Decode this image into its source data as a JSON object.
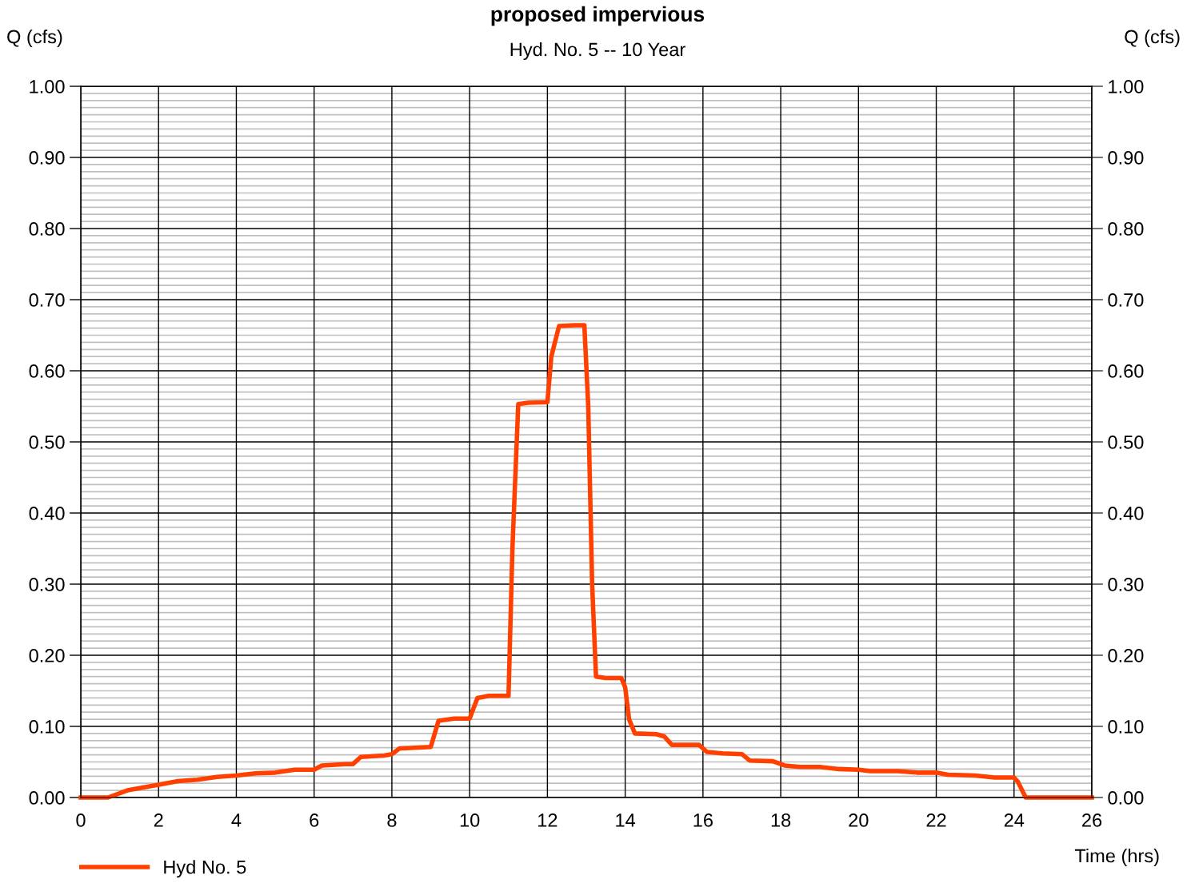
{
  "chart_data": {
    "type": "line",
    "title": "proposed impervious",
    "subtitle": "Hyd. No. 5 -- 10 Year",
    "xlabel": "Time (hrs)",
    "ylabel": "Q (cfs)",
    "y2label": "Q (cfs)",
    "series": [
      {
        "name": "Hyd No. 5",
        "color": "#ff4000",
        "x": [
          0,
          0.7,
          1.2,
          2,
          2.5,
          3,
          3.5,
          4,
          4.5,
          5,
          5.5,
          6,
          6.2,
          6.8,
          7.0,
          7.2,
          7.8,
          8.0,
          8.2,
          9.0,
          9.2,
          9.6,
          10.0,
          10.2,
          10.5,
          11.0,
          11.1,
          11.25,
          11.5,
          12.0,
          12.1,
          12.3,
          12.7,
          12.95,
          13.05,
          13.15,
          13.25,
          13.5,
          13.9,
          14.0,
          14.1,
          14.25,
          14.8,
          15.0,
          15.2,
          15.9,
          16.1,
          16.5,
          17.0,
          17.2,
          17.8,
          18.1,
          18.5,
          19,
          19.5,
          20,
          20.3,
          21,
          21.5,
          22,
          22.3,
          23,
          23.5,
          24,
          24.1,
          24.3,
          26
        ],
        "values": [
          0,
          0,
          0.01,
          0.018,
          0.023,
          0.025,
          0.029,
          0.031,
          0.034,
          0.035,
          0.039,
          0.039,
          0.045,
          0.047,
          0.047,
          0.057,
          0.059,
          0.061,
          0.069,
          0.071,
          0.108,
          0.111,
          0.111,
          0.14,
          0.143,
          0.143,
          0.35,
          0.553,
          0.555,
          0.556,
          0.62,
          0.663,
          0.664,
          0.664,
          0.55,
          0.3,
          0.17,
          0.168,
          0.168,
          0.155,
          0.11,
          0.09,
          0.089,
          0.086,
          0.074,
          0.074,
          0.064,
          0.062,
          0.061,
          0.052,
          0.051,
          0.045,
          0.043,
          0.043,
          0.04,
          0.039,
          0.037,
          0.037,
          0.035,
          0.035,
          0.032,
          0.031,
          0.028,
          0.028,
          0.022,
          0,
          0
        ]
      }
    ],
    "xlim": [
      0,
      26
    ],
    "xticks": [
      0,
      2,
      4,
      6,
      8,
      10,
      12,
      14,
      16,
      18,
      20,
      22,
      24,
      26
    ],
    "ylim": [
      0,
      1.0
    ],
    "yticks": [
      {
        "value": 0.01,
        "label": null
      },
      {
        "value": 0.02,
        "label": null
      },
      {
        "value": 0.03,
        "label": null
      },
      {
        "value": 0.04,
        "label": null
      },
      {
        "value": 0.05,
        "label": null
      },
      {
        "value": 0.06,
        "label": null
      },
      {
        "value": 0.07,
        "label": null
      },
      {
        "value": 0.08,
        "label": null
      },
      {
        "value": 0.09,
        "label": null
      },
      {
        "value": 0.11,
        "label": null
      },
      {
        "value": 0.12,
        "label": null
      },
      {
        "value": 0.13,
        "label": null
      },
      {
        "value": 0.14,
        "label": null
      },
      {
        "value": 0.15,
        "label": null
      },
      {
        "value": 0.16,
        "label": null
      },
      {
        "value": 0.17,
        "label": null
      },
      {
        "value": 0.18,
        "label": null
      },
      {
        "value": 0.19,
        "label": null
      },
      {
        "value": 0.21,
        "label": null
      },
      {
        "value": 0.22,
        "label": null
      },
      {
        "value": 0.23,
        "label": null
      },
      {
        "value": 0.24,
        "label": null
      },
      {
        "value": 0.25,
        "label": null
      },
      {
        "value": 0.26,
        "label": null
      },
      {
        "value": 0.27,
        "label": null
      },
      {
        "value": 0.28,
        "label": null
      },
      {
        "value": 0.29,
        "label": null
      },
      {
        "value": 0.31,
        "label": null
      },
      {
        "value": 0.32,
        "label": null
      },
      {
        "value": 0.33,
        "label": null
      },
      {
        "value": 0.34,
        "label": null
      },
      {
        "value": 0.35,
        "label": null
      },
      {
        "value": 0.36,
        "label": null
      },
      {
        "value": 0.37,
        "label": null
      },
      {
        "value": 0.38,
        "label": null
      },
      {
        "value": 0.39,
        "label": null
      },
      {
        "value": 0.41,
        "label": null
      },
      {
        "value": 0.42,
        "label": null
      },
      {
        "value": 0.43,
        "label": null
      },
      {
        "value": 0.44,
        "label": null
      },
      {
        "value": 0.45,
        "label": null
      },
      {
        "value": 0.46,
        "label": null
      },
      {
        "value": 0.47,
        "label": null
      },
      {
        "value": 0.48,
        "label": null
      },
      {
        "value": 0.49,
        "label": null
      },
      {
        "value": 0.51,
        "label": null
      },
      {
        "value": 0.52,
        "label": null
      },
      {
        "value": 0.53,
        "label": null
      },
      {
        "value": 0.54,
        "label": null
      },
      {
        "value": 0.55,
        "label": null
      },
      {
        "value": 0.56,
        "label": null
      },
      {
        "value": 0.57,
        "label": null
      },
      {
        "value": 0.58,
        "label": null
      },
      {
        "value": 0.59,
        "label": null
      },
      {
        "value": 0.61,
        "label": null
      },
      {
        "value": 0.62,
        "label": null
      },
      {
        "value": 0.63,
        "label": null
      },
      {
        "value": 0.64,
        "label": null
      },
      {
        "value": 0.65,
        "label": null
      },
      {
        "value": 0.66,
        "label": null
      },
      {
        "value": 0.67,
        "label": null
      },
      {
        "value": 0.68,
        "label": null
      },
      {
        "value": 0.69,
        "label": null
      },
      {
        "value": 0.71,
        "label": null
      },
      {
        "value": 0.72,
        "label": null
      },
      {
        "value": 0.73,
        "label": null
      },
      {
        "value": 0.74,
        "label": null
      },
      {
        "value": 0.75,
        "label": null
      },
      {
        "value": 0.76,
        "label": null
      },
      {
        "value": 0.77,
        "label": null
      },
      {
        "value": 0.78,
        "label": null
      },
      {
        "value": 0.79,
        "label": null
      },
      {
        "value": 0.81,
        "label": null
      },
      {
        "value": 0.82,
        "label": null
      },
      {
        "value": 0.83,
        "label": null
      },
      {
        "value": 0.84,
        "label": null
      },
      {
        "value": 0.85,
        "label": null
      },
      {
        "value": 0.86,
        "label": null
      },
      {
        "value": 0.87,
        "label": null
      },
      {
        "value": 0.88,
        "label": null
      },
      {
        "value": 0.89,
        "label": null
      },
      {
        "value": 0.91,
        "label": null
      },
      {
        "value": 0.92,
        "label": null
      },
      {
        "value": 0.93,
        "label": null
      },
      {
        "value": 0.94,
        "label": null
      },
      {
        "value": 0.95,
        "label": null
      },
      {
        "value": 0.96,
        "label": null
      },
      {
        "value": 0.97,
        "label": null
      },
      {
        "value": 0.98,
        "label": null
      },
      {
        "value": 0.99,
        "label": null
      },
      {
        "value": 0,
        "label": "0.00"
      },
      {
        "value": 0.1,
        "label": "0.10"
      },
      {
        "value": 0.2,
        "label": "0.20"
      },
      {
        "value": 0.3,
        "label": "0.30"
      },
      {
        "value": 0.4,
        "label": "0.40"
      },
      {
        "value": 0.5,
        "label": "0.50"
      },
      {
        "value": 0.6,
        "label": "0.60"
      },
      {
        "value": 0.7,
        "label": "0.70"
      },
      {
        "value": 0.8,
        "label": "0.80"
      },
      {
        "value": 0.9,
        "label": "0.90"
      },
      {
        "value": 1.0,
        "label": "1.00"
      }
    ],
    "y2lim": [
      0,
      1.0
    ],
    "y2ticks": [
      {
        "value": 0,
        "label": "0.00"
      },
      {
        "value": 0.1,
        "label": "0.10"
      },
      {
        "value": 0.2,
        "label": "0.20"
      },
      {
        "value": 0.3,
        "label": "0.30"
      },
      {
        "value": 0.4,
        "label": "0.40"
      },
      {
        "value": 0.5,
        "label": "0.50"
      },
      {
        "value": 0.6,
        "label": "0.60"
      },
      {
        "value": 0.7,
        "label": "0.70"
      },
      {
        "value": 0.8,
        "label": "0.80"
      },
      {
        "value": 0.9,
        "label": "0.90"
      },
      {
        "value": 1.0,
        "label": "1.00"
      }
    ],
    "grid": true,
    "legend": "bottom left",
    "marker": "none",
    "line_style": "solid"
  }
}
